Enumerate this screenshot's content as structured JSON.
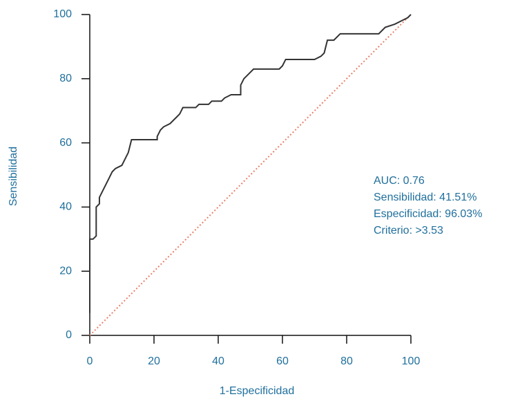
{
  "chart_data": {
    "type": "line",
    "x_label": "1-Especificidad",
    "y_label": "Sensibilidad",
    "annotations": [
      "AUC: 0.76",
      "Sensibilidad: 41.51%",
      "Especificidad: 96.03%",
      "Criterio: >3.53"
    ],
    "x": [
      0,
      0,
      1,
      2,
      2,
      3,
      3,
      4,
      5,
      6,
      7,
      8,
      10,
      11,
      12,
      13,
      15,
      21,
      21,
      22,
      23,
      25,
      26,
      27,
      28,
      29,
      33,
      34,
      37,
      38,
      41,
      42,
      44,
      47,
      47,
      48,
      49,
      51,
      59,
      60,
      61,
      70,
      72,
      73,
      74,
      76,
      77,
      78,
      90,
      92,
      95,
      97,
      99,
      100
    ],
    "values": [
      7,
      30,
      30,
      31,
      40,
      41,
      43,
      45,
      47,
      49,
      51,
      52,
      53,
      55,
      57,
      61,
      61,
      61,
      62,
      64,
      65,
      66,
      67,
      68,
      69,
      71,
      71,
      72,
      72,
      73,
      73,
      74,
      75,
      75,
      78,
      80,
      81,
      83,
      83,
      84,
      86,
      86,
      87,
      88,
      92,
      92,
      93,
      94,
      94,
      96,
      97,
      98,
      99,
      100
    ],
    "color": "#333333",
    "reference_line": {
      "color": "#e8806a",
      "style": "dotted"
    },
    "xlim": [
      0,
      100
    ],
    "ylim": [
      0,
      100
    ],
    "xticks": [
      0,
      20,
      40,
      60,
      80,
      100
    ],
    "yticks": [
      0,
      20,
      40,
      60,
      80,
      100
    ]
  }
}
